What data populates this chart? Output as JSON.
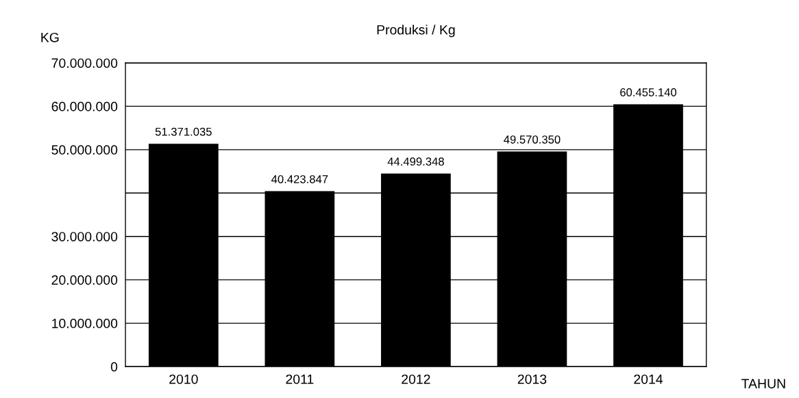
{
  "chart_data": {
    "type": "bar",
    "title": "Produksi / Kg",
    "xlabel": "TAHUN",
    "ylabel": "KG",
    "categories": [
      "2010",
      "2011",
      "2012",
      "2013",
      "2014"
    ],
    "values": [
      51371035,
      40423847,
      44499348,
      49570350,
      60455140
    ],
    "value_labels": [
      "51.371.035",
      "40.423.847",
      "44.499.348",
      "49.570.350",
      "60.455.140"
    ],
    "color": "#000000",
    "ylim": [
      0,
      70000000
    ],
    "yticks": [
      {
        "value": 0,
        "label": "0"
      },
      {
        "value": 10000000,
        "label": "10.000.000"
      },
      {
        "value": 20000000,
        "label": "20.000.000"
      },
      {
        "value": 30000000,
        "label": "30.000.000"
      },
      {
        "value": 40000000,
        "label": null
      },
      {
        "value": 50000000,
        "label": "50.000.000"
      },
      {
        "value": 60000000,
        "label": "60.000.000"
      },
      {
        "value": 70000000,
        "label": "70.000.000"
      }
    ],
    "grid": "y"
  }
}
